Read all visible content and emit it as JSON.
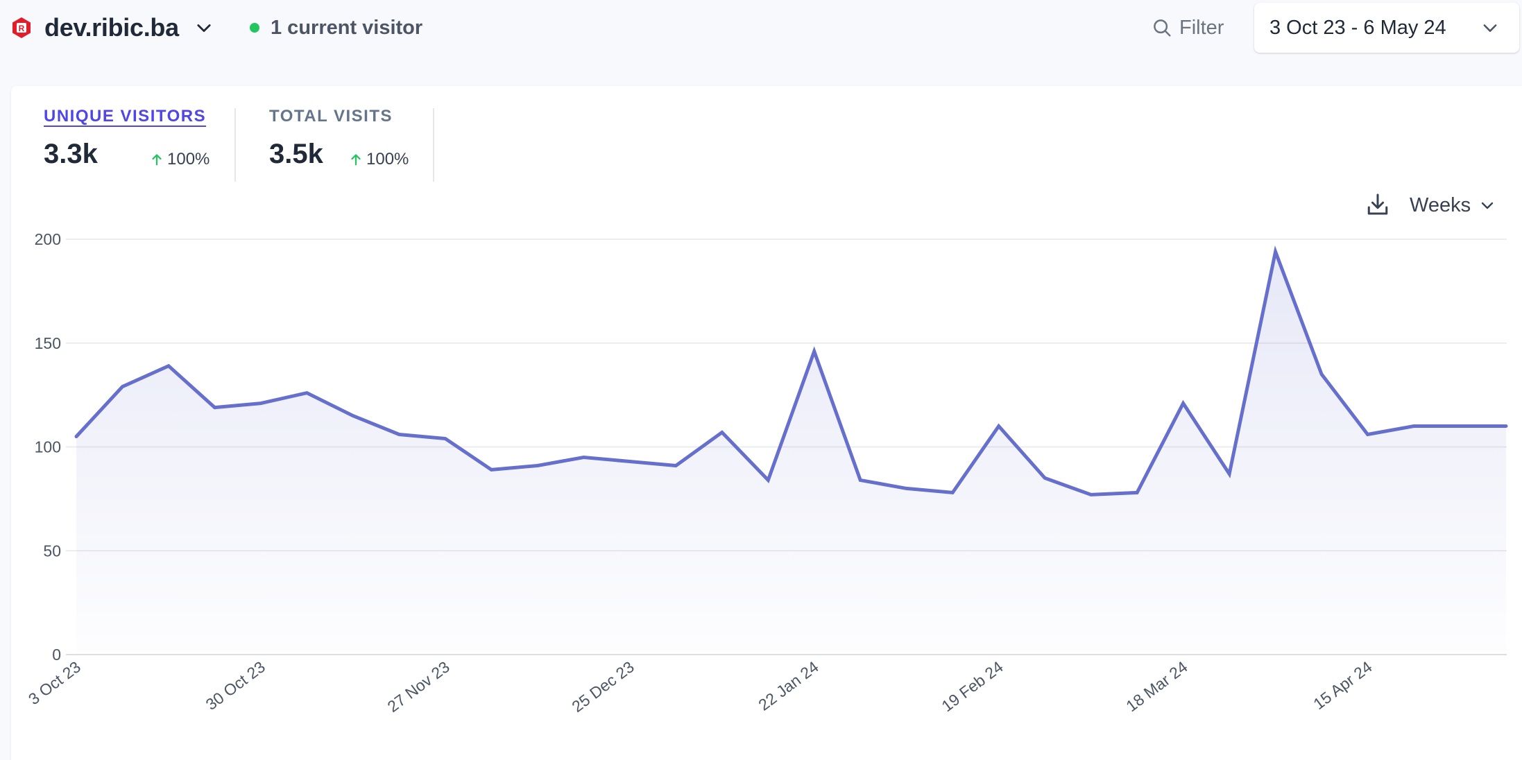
{
  "header": {
    "site_domain": "dev.ribic.ba",
    "site_logo_letter": "R",
    "realtime_text": "1 current visitor",
    "filter_label": "Filter",
    "date_range": "3 Oct 23 - 6 May 24"
  },
  "stats": [
    {
      "label": "UNIQUE VISITORS",
      "value": "3.3k",
      "change": "100%",
      "active": true
    },
    {
      "label": "TOTAL VISITS",
      "value": "3.5k",
      "change": "100%",
      "active": false
    }
  ],
  "controls": {
    "interval": "Weeks",
    "download_icon": "download-icon"
  },
  "colors": {
    "line": "#6670cc",
    "accent": "#4f46e5",
    "positive": "#22c55e",
    "logo": "#e11d2a"
  },
  "chart_data": {
    "type": "area",
    "x_tick_labels": [
      "3 Oct 23",
      "30 Oct 23",
      "27 Nov 23",
      "25 Dec 23",
      "22 Jan 24",
      "19 Feb 24",
      "18 Mar 24",
      "15 Apr 24"
    ],
    "x": [
      "3 Oct 23",
      "9 Oct 23",
      "16 Oct 23",
      "23 Oct 23",
      "30 Oct 23",
      "6 Nov 23",
      "13 Nov 23",
      "20 Nov 23",
      "27 Nov 23",
      "4 Dec 23",
      "11 Dec 23",
      "18 Dec 23",
      "25 Dec 23",
      "1 Jan 24",
      "8 Jan 24",
      "15 Jan 24",
      "22 Jan 24",
      "29 Jan 24",
      "5 Feb 24",
      "12 Feb 24",
      "19 Feb 24",
      "26 Feb 24",
      "4 Mar 24",
      "11 Mar 24",
      "18 Mar 24",
      "25 Mar 24",
      "1 Apr 24",
      "8 Apr 24",
      "15 Apr 24",
      "22 Apr 24",
      "29 Apr 24",
      "6 May 24"
    ],
    "series": [
      {
        "values": [
          105,
          129,
          139,
          119,
          121,
          126,
          115,
          106,
          104,
          89,
          91,
          95,
          93,
          91,
          107,
          84,
          146,
          84,
          80,
          78,
          110,
          85,
          77,
          78,
          121,
          87,
          194,
          135,
          106,
          110,
          110,
          110
        ]
      }
    ],
    "y_ticks": [
      0,
      50,
      100,
      150,
      200
    ],
    "ylim": [
      0,
      200
    ],
    "grid": true,
    "legend": "none"
  }
}
